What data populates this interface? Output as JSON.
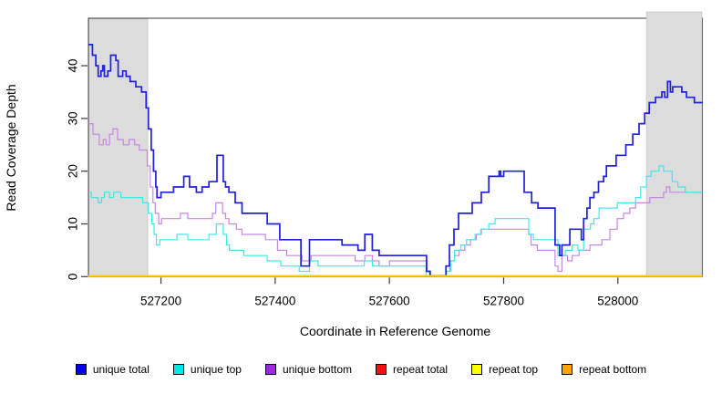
{
  "figure": {
    "xlabel": "Coordinate in Reference Genome",
    "ylabel": "Read Coverage Depth"
  },
  "chart_data": {
    "type": "line",
    "subtype": "step",
    "title": "",
    "xlabel": "Coordinate in Reference Genome",
    "ylabel": "Read Coverage Depth",
    "xlim": [
      527073,
      528148
    ],
    "ylim": [
      0,
      49
    ],
    "x_ticks": [
      527200,
      527400,
      527600,
      527800,
      528000
    ],
    "y_ticks": [
      0,
      10,
      20,
      30,
      40
    ],
    "grid": false,
    "legend_position": "bottom",
    "background_color": "#ffffff",
    "shaded_region_color": "#dcdcdc",
    "shaded_regions": [
      {
        "name": "left-repeat-region",
        "x0": 527073,
        "x1": 527176
      },
      {
        "name": "right-repeat-region",
        "x0": 528050,
        "x1": 528148
      }
    ],
    "series": [
      {
        "name": "unique total",
        "slug": "unique-total",
        "color": "#0000ee",
        "line_color": "#2121dd",
        "width": 1.7,
        "z": 3,
        "points": [
          [
            527073,
            44
          ],
          [
            527080,
            42
          ],
          [
            527086,
            40
          ],
          [
            527090,
            38
          ],
          [
            527095,
            39
          ],
          [
            527098,
            40
          ],
          [
            527101,
            38
          ],
          [
            527107,
            39
          ],
          [
            527112,
            42
          ],
          [
            527121,
            41
          ],
          [
            527125,
            38
          ],
          [
            527133,
            39
          ],
          [
            527139,
            38
          ],
          [
            527146,
            37
          ],
          [
            527156,
            36
          ],
          [
            527166,
            35
          ],
          [
            527174,
            32
          ],
          [
            527178,
            28
          ],
          [
            527183,
            24
          ],
          [
            527187,
            20
          ],
          [
            527191,
            17
          ],
          [
            527193,
            15
          ],
          [
            527200,
            16
          ],
          [
            527222,
            17
          ],
          [
            527240,
            19
          ],
          [
            527250,
            17
          ],
          [
            527262,
            16
          ],
          [
            527272,
            17
          ],
          [
            527284,
            18
          ],
          [
            527298,
            23
          ],
          [
            527309,
            18
          ],
          [
            527313,
            17
          ],
          [
            527319,
            16
          ],
          [
            527330,
            14
          ],
          [
            527342,
            12
          ],
          [
            527386,
            10
          ],
          [
            527408,
            7
          ],
          [
            527445,
            2
          ],
          [
            527460,
            7
          ],
          [
            527517,
            6
          ],
          [
            527545,
            5
          ],
          [
            527557,
            8
          ],
          [
            527570,
            5
          ],
          [
            527582,
            4
          ],
          [
            527665,
            1
          ],
          [
            527671,
            0
          ],
          [
            527699,
            2
          ],
          [
            527705,
            6
          ],
          [
            527713,
            9
          ],
          [
            527721,
            12
          ],
          [
            527745,
            14
          ],
          [
            527761,
            16
          ],
          [
            527774,
            19
          ],
          [
            527792,
            20
          ],
          [
            527795,
            19
          ],
          [
            527800,
            20
          ],
          [
            527836,
            16
          ],
          [
            527849,
            14
          ],
          [
            527860,
            13
          ],
          [
            527890,
            6
          ],
          [
            527898,
            4
          ],
          [
            527902,
            6
          ],
          [
            527916,
            9
          ],
          [
            527936,
            7
          ],
          [
            527940,
            11
          ],
          [
            527946,
            13
          ],
          [
            527951,
            15
          ],
          [
            527958,
            16
          ],
          [
            527966,
            18
          ],
          [
            527975,
            19
          ],
          [
            527980,
            21
          ],
          [
            527997,
            23
          ],
          [
            528014,
            25
          ],
          [
            528026,
            27
          ],
          [
            528037,
            29
          ],
          [
            528047,
            31
          ],
          [
            528055,
            33
          ],
          [
            528066,
            34
          ],
          [
            528077,
            35
          ],
          [
            528082,
            34
          ],
          [
            528087,
            37
          ],
          [
            528092,
            35
          ],
          [
            528096,
            36
          ],
          [
            528112,
            35
          ],
          [
            528120,
            34
          ],
          [
            528134,
            33
          ],
          [
            528148,
            33
          ]
        ]
      },
      {
        "name": "unique top",
        "slug": "unique-top",
        "color": "#00e8e8",
        "line_color": "#40e8e8",
        "width": 1.2,
        "z": 2,
        "points": [
          [
            527073,
            16
          ],
          [
            527078,
            15
          ],
          [
            527090,
            14
          ],
          [
            527096,
            15
          ],
          [
            527101,
            16
          ],
          [
            527110,
            15
          ],
          [
            527117,
            16
          ],
          [
            527130,
            15
          ],
          [
            527168,
            14
          ],
          [
            527178,
            12
          ],
          [
            527184,
            10
          ],
          [
            527188,
            8
          ],
          [
            527192,
            6
          ],
          [
            527198,
            7
          ],
          [
            527228,
            8
          ],
          [
            527247,
            7
          ],
          [
            527284,
            8
          ],
          [
            527297,
            10
          ],
          [
            527309,
            8
          ],
          [
            527315,
            6
          ],
          [
            527320,
            5
          ],
          [
            527345,
            4
          ],
          [
            527386,
            3
          ],
          [
            527410,
            2
          ],
          [
            527442,
            1
          ],
          [
            527460,
            3
          ],
          [
            527475,
            2
          ],
          [
            527556,
            3
          ],
          [
            527570,
            2
          ],
          [
            527664,
            0
          ],
          [
            527700,
            1
          ],
          [
            527708,
            3
          ],
          [
            527714,
            5
          ],
          [
            527725,
            6
          ],
          [
            527735,
            7
          ],
          [
            527750,
            8
          ],
          [
            527760,
            9
          ],
          [
            527774,
            10
          ],
          [
            527785,
            11
          ],
          [
            527844,
            8
          ],
          [
            527852,
            7
          ],
          [
            527895,
            4
          ],
          [
            527908,
            5
          ],
          [
            527920,
            6
          ],
          [
            527930,
            5
          ],
          [
            527940,
            9
          ],
          [
            527952,
            10
          ],
          [
            527958,
            11
          ],
          [
            527967,
            13
          ],
          [
            527999,
            14
          ],
          [
            528031,
            15
          ],
          [
            528040,
            17
          ],
          [
            528050,
            19
          ],
          [
            528058,
            20
          ],
          [
            528072,
            21
          ],
          [
            528080,
            20
          ],
          [
            528095,
            18
          ],
          [
            528105,
            17
          ],
          [
            528118,
            16
          ],
          [
            528148,
            16
          ]
        ]
      },
      {
        "name": "unique bottom",
        "slug": "unique-bottom",
        "color": "#9a2be2",
        "line_color": "#c687e3",
        "width": 1.2,
        "z": 1,
        "points": [
          [
            527073,
            29
          ],
          [
            527081,
            27
          ],
          [
            527092,
            25
          ],
          [
            527099,
            26
          ],
          [
            527104,
            25
          ],
          [
            527110,
            27
          ],
          [
            527116,
            28
          ],
          [
            527124,
            26
          ],
          [
            527134,
            25
          ],
          [
            527144,
            26
          ],
          [
            527154,
            25
          ],
          [
            527162,
            24
          ],
          [
            527176,
            21
          ],
          [
            527181,
            17
          ],
          [
            527186,
            14
          ],
          [
            527190,
            12
          ],
          [
            527196,
            10
          ],
          [
            527201,
            11
          ],
          [
            527234,
            12
          ],
          [
            527247,
            11
          ],
          [
            527290,
            12
          ],
          [
            527296,
            14
          ],
          [
            527308,
            12
          ],
          [
            527313,
            11
          ],
          [
            527319,
            10
          ],
          [
            527332,
            9
          ],
          [
            527342,
            8
          ],
          [
            527383,
            7
          ],
          [
            527404,
            5
          ],
          [
            527420,
            4
          ],
          [
            527447,
            3
          ],
          [
            527463,
            4
          ],
          [
            527540,
            3
          ],
          [
            527557,
            4
          ],
          [
            527570,
            3
          ],
          [
            527582,
            2
          ],
          [
            527600,
            3
          ],
          [
            527666,
            1
          ],
          [
            527672,
            0
          ],
          [
            527700,
            1
          ],
          [
            527706,
            3
          ],
          [
            527714,
            4
          ],
          [
            527722,
            5
          ],
          [
            527732,
            6
          ],
          [
            527742,
            7
          ],
          [
            527752,
            8
          ],
          [
            527761,
            9
          ],
          [
            527844,
            8
          ],
          [
            527848,
            6
          ],
          [
            527859,
            5
          ],
          [
            527890,
            2
          ],
          [
            527895,
            1
          ],
          [
            527902,
            4
          ],
          [
            527912,
            3
          ],
          [
            527920,
            4
          ],
          [
            527932,
            5
          ],
          [
            527951,
            6
          ],
          [
            527972,
            7
          ],
          [
            527986,
            9
          ],
          [
            527999,
            11
          ],
          [
            528010,
            12
          ],
          [
            528021,
            13
          ],
          [
            528031,
            14
          ],
          [
            528056,
            15
          ],
          [
            528080,
            16
          ],
          [
            528085,
            17
          ],
          [
            528091,
            16
          ],
          [
            528148,
            16
          ]
        ]
      },
      {
        "name": "repeat total",
        "slug": "repeat-total",
        "color": "#ee1111",
        "line_color": "#ee1111",
        "width": 1.2,
        "z": 4,
        "points": [
          [
            527073,
            0
          ],
          [
            528148,
            0
          ]
        ]
      },
      {
        "name": "repeat top",
        "slug": "repeat-top",
        "color": "#ffff00",
        "line_color": "#ffff00",
        "width": 1.2,
        "z": 5,
        "points": [
          [
            527073,
            0
          ],
          [
            528148,
            0
          ]
        ]
      },
      {
        "name": "repeat bottom",
        "slug": "repeat-bottom",
        "color": "#ffa500",
        "line_color": "#ffa500",
        "width": 1.7,
        "z": 6,
        "points": [
          [
            527073,
            0
          ],
          [
            528148,
            0
          ]
        ]
      }
    ]
  }
}
